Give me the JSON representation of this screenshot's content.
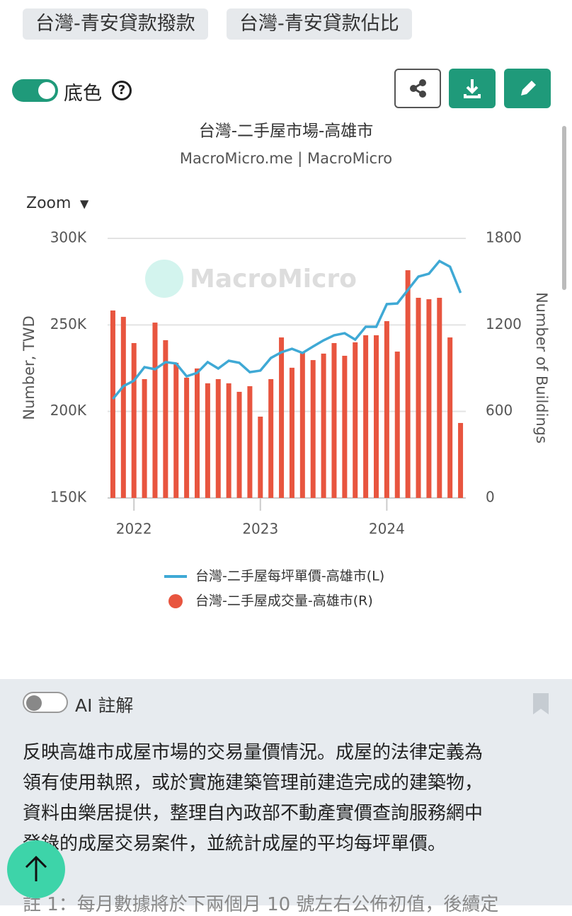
{
  "tags": [
    "台灣-青安貸款撥款",
    "台灣-青安貸款佔比"
  ],
  "toggle_label": "底色",
  "chart_data": {
    "type": "bar_line",
    "title": "台灣-二手屋市場-高雄市",
    "subtitle": "MacroMicro.me | MacroMicro",
    "zoom_label": "Zoom",
    "watermark": "MacroMicro",
    "y_label": "Number, TWD",
    "y2_label": "Number of Buildings",
    "categories": [
      null,
      null,
      "2022",
      null,
      null,
      null,
      null,
      null,
      null,
      null,
      null,
      null,
      null,
      null,
      "2023",
      null,
      null,
      null,
      null,
      null,
      null,
      null,
      null,
      null,
      null,
      null,
      "2024",
      null,
      null,
      null,
      null,
      null,
      null,
      null
    ],
    "ylim": [
      150000,
      300000
    ],
    "yticks": [
      {
        "value": 150000,
        "label": "150K"
      },
      {
        "value": 200000,
        "label": "200K"
      },
      {
        "value": 250000,
        "label": "250K"
      },
      {
        "value": 300000,
        "label": "300K"
      }
    ],
    "y2lim": [
      0,
      1800
    ],
    "y2ticks": [
      0,
      600,
      1200,
      1800
    ],
    "grid": true,
    "series": [
      {
        "name": "台灣-二手屋每坪單價-高雄市(L)",
        "type": "line",
        "color": "#3fa9d5",
        "values": [
          207200,
          214600,
          217800,
          225600,
          224400,
          228500,
          227700,
          220300,
          222300,
          228500,
          224800,
          229300,
          228100,
          222700,
          223600,
          230900,
          234200,
          236200,
          233800,
          237500,
          241100,
          244000,
          245200,
          241500,
          248900,
          248900,
          262000,
          262400,
          270200,
          277900,
          279600,
          286900,
          283600,
          268500
        ]
      },
      {
        "name": "台灣-二手屋成交量-高雄市(R)",
        "type": "bar",
        "axis": "y2",
        "color": "#e8553f",
        "values": [
          1300,
          1256,
          1074,
          824,
          1216,
          1094,
          937,
          834,
          898,
          795,
          824,
          795,
          736,
          775,
          564,
          824,
          1113,
          903,
          1015,
          956,
          1001,
          1074,
          986,
          1079,
          1128,
          1128,
          1226,
          1015,
          1579,
          1388,
          1378,
          1388,
          1113,
          520
        ]
      }
    ]
  },
  "ai_label": "AI 註解",
  "description": [
    "反映高雄市成屋市場的交易量價情況。成屋的法律定義為",
    "領有使用執照，或於實施建築管理前建造完成的建築物，",
    "資料由樂居提供，整理自內政部不動產實價查詢服務網中",
    "登錄的成屋交易案件，並統計成屋的平均每坪單價。"
  ],
  "note": "註 1：每月數據將於下兩個月 10 號左右公佈初值，後續定"
}
